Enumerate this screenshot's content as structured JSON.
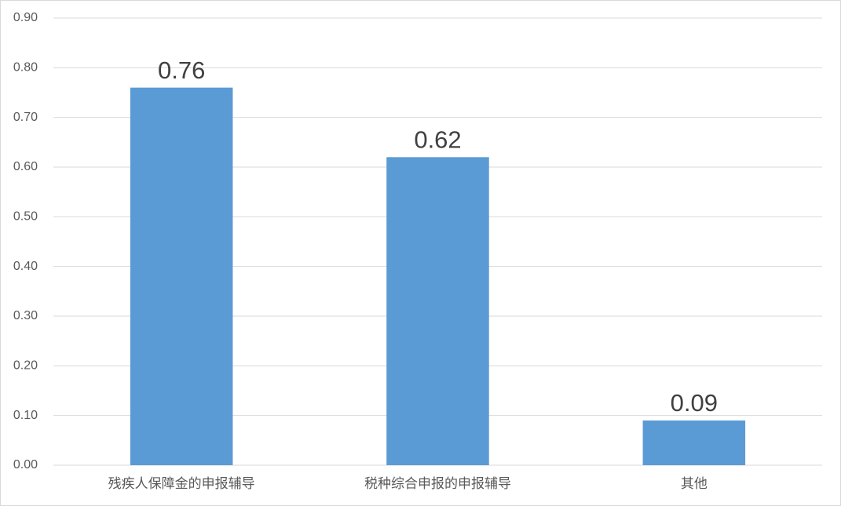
{
  "chart_data": {
    "type": "bar",
    "categories": [
      "残疾人保障金的申报辅导",
      "税种综合申报的申报辅导",
      "其他"
    ],
    "values": [
      0.76,
      0.62,
      0.09
    ],
    "color": "#5b9bd5",
    "ylim": [
      0,
      0.9
    ],
    "yticks": [
      {
        "value": 0,
        "label": "0.00"
      },
      {
        "value": 0.1,
        "label": "0.10"
      },
      {
        "value": 0.2,
        "label": "0.20"
      },
      {
        "value": 0.3,
        "label": "0.30"
      },
      {
        "value": 0.4,
        "label": "0.40"
      },
      {
        "value": 0.5,
        "label": "0.50"
      },
      {
        "value": 0.6,
        "label": "0.60"
      },
      {
        "value": 0.7,
        "label": "0.70"
      },
      {
        "value": 0.8,
        "label": "0.80"
      },
      {
        "value": 0.9,
        "label": "0.90"
      }
    ],
    "grid": true
  }
}
